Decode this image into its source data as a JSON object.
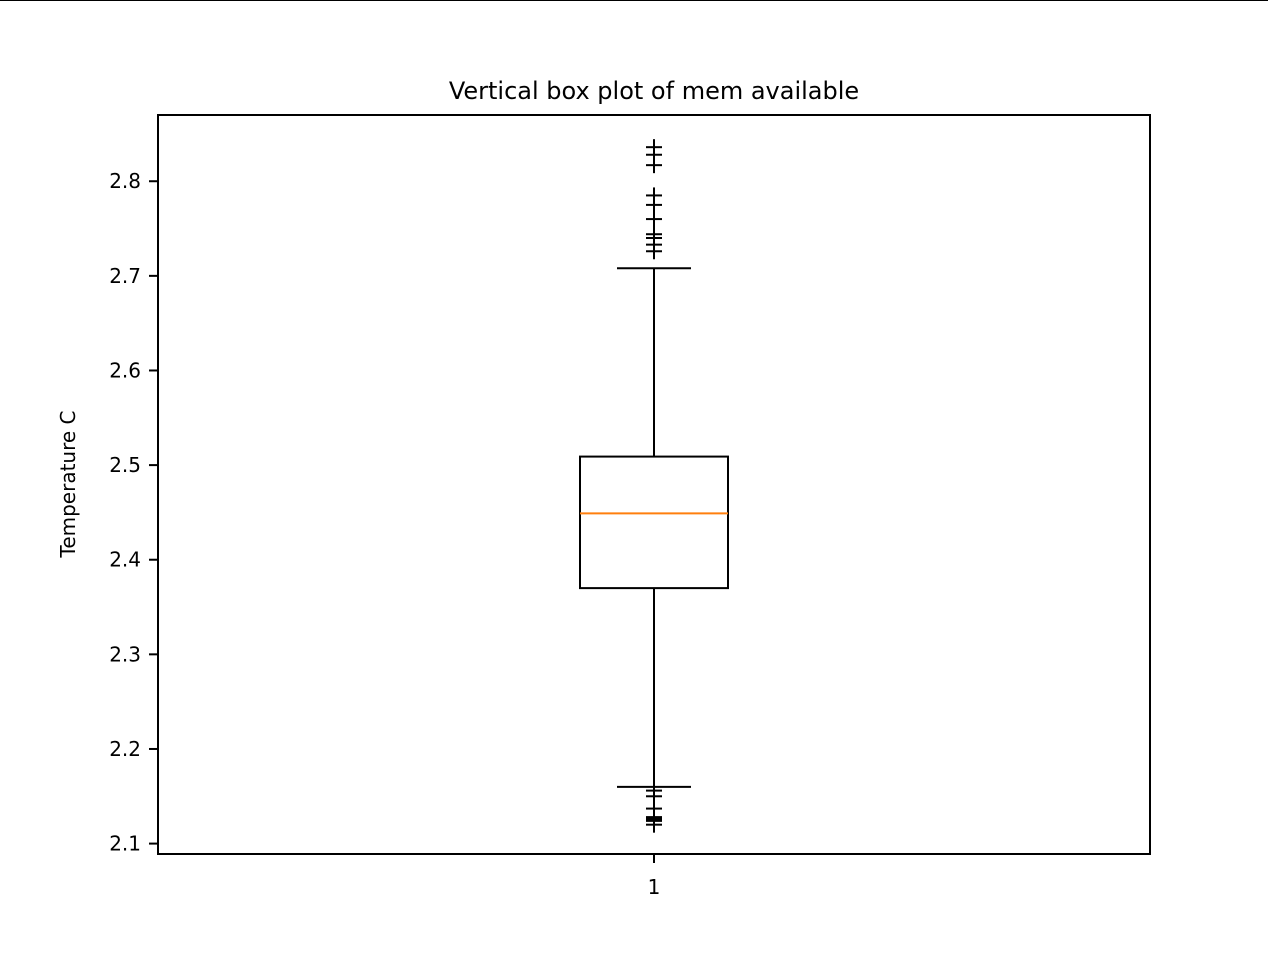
{
  "chart_data": {
    "type": "box",
    "title": "Vertical box plot of mem available",
    "xlabel": "",
    "ylabel": "Temperature C",
    "ylim": [
      2.089,
      2.87
    ],
    "y_ticks": [
      2.1,
      2.2,
      2.3,
      2.4,
      2.5,
      2.6,
      2.7,
      2.8
    ],
    "y_tick_labels": [
      "2.1",
      "2.2",
      "2.3",
      "2.4",
      "2.5",
      "2.6",
      "2.7",
      "2.8"
    ],
    "x_tick_labels": [
      "1"
    ],
    "grid": false,
    "legend": "none",
    "boxes": [
      {
        "position": 1,
        "whisker_low": 2.16,
        "q1": 2.37,
        "median": 2.449,
        "q3": 2.509,
        "whisker_high": 2.708,
        "outliers": [
          2.836,
          2.828,
          2.817,
          2.785,
          2.775,
          2.76,
          2.744,
          2.74,
          2.733,
          2.726,
          2.156,
          2.15,
          2.137,
          2.128,
          2.126,
          2.124,
          2.12
        ]
      }
    ],
    "colors": {
      "box": "#000000",
      "median": "#ff7f0e",
      "whisker": "#000000",
      "flier": "#000000"
    }
  }
}
